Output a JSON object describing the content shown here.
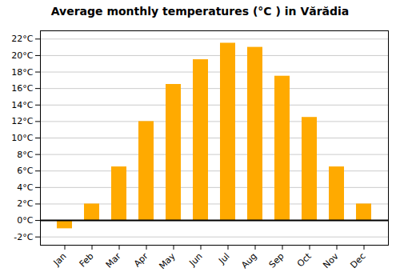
{
  "chart_data": {
    "type": "bar",
    "title": "Average monthly temperatures (°C ) in Vărădia",
    "categories": [
      "Jan",
      "Feb",
      "Mar",
      "Apr",
      "May",
      "Jun",
      "Jul",
      "Aug",
      "Sep",
      "Oct",
      "Nov",
      "Dec"
    ],
    "values": [
      -1.0,
      2.0,
      6.5,
      12.0,
      16.5,
      19.5,
      21.5,
      21.0,
      17.5,
      12.5,
      6.5,
      2.0
    ],
    "color": "#FFAA00",
    "ylim": [
      -3,
      23
    ],
    "yticks": [
      {
        "value": -2,
        "label": "-2°C"
      },
      {
        "value": 0,
        "label": "0°C"
      },
      {
        "value": 2,
        "label": "2°C"
      },
      {
        "value": 4,
        "label": "4°C"
      },
      {
        "value": 6,
        "label": "6°C"
      },
      {
        "value": 8,
        "label": "8°C"
      },
      {
        "value": 10,
        "label": "10°C"
      },
      {
        "value": 12,
        "label": "12°C"
      },
      {
        "value": 14,
        "label": "14°C"
      },
      {
        "value": 16,
        "label": "16°C"
      },
      {
        "value": 18,
        "label": "18°C"
      },
      {
        "value": 20,
        "label": "20°C"
      },
      {
        "value": 22,
        "label": "22°C"
      }
    ],
    "grid": true
  }
}
